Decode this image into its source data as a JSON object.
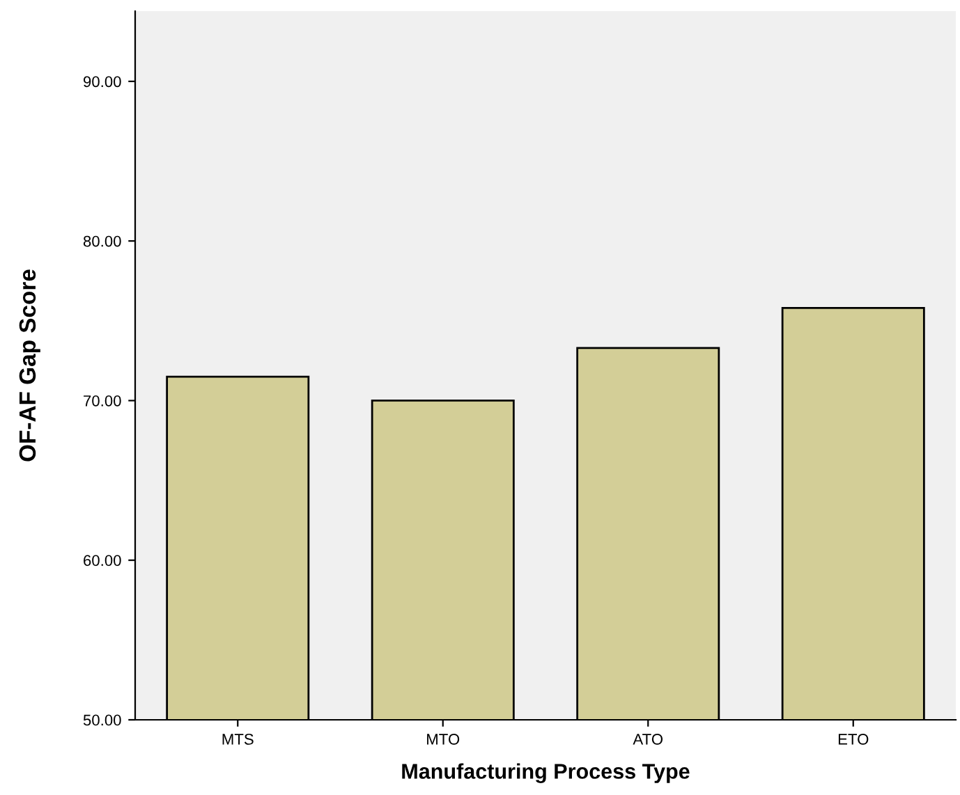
{
  "chart_data": {
    "type": "bar",
    "xlabel": "Manufacturing Process Type",
    "ylabel": "OF-AF Gap Score",
    "categories": [
      "MTS",
      "MTO",
      "ATO",
      "ETO"
    ],
    "values": [
      71.5,
      70.0,
      73.3,
      75.8
    ],
    "color": "#d3ce97",
    "ylim": [
      50,
      94.4
    ],
    "yticks": [
      {
        "value": 50,
        "label": "50.00"
      },
      {
        "value": 60,
        "label": "60.00"
      },
      {
        "value": 70,
        "label": "70.00"
      },
      {
        "value": 80,
        "label": "80.00"
      },
      {
        "value": 90,
        "label": "90.00"
      }
    ],
    "grid": false,
    "legend": false
  }
}
